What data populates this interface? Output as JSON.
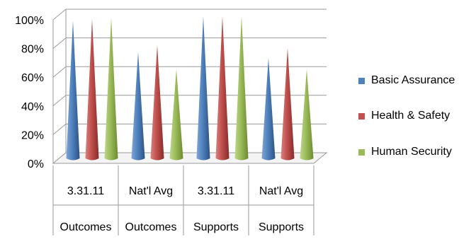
{
  "chart_data": {
    "type": "bar",
    "style": "3d-cone",
    "categories": [
      {
        "label": "3.31.11",
        "group": "Outcomes"
      },
      {
        "label": "Nat'l Avg",
        "group": "Outcomes"
      },
      {
        "label": "3.31.11",
        "group": "Supports"
      },
      {
        "label": "Nat'l Avg",
        "group": "Supports"
      }
    ],
    "series": [
      {
        "name": "Basic Assurance",
        "color": "#4F81BD",
        "values": [
          97,
          75,
          100,
          71
        ]
      },
      {
        "name": "Health & Safety",
        "color": "#C0504D",
        "values": [
          98,
          80,
          100,
          78
        ]
      },
      {
        "name": "Human Security",
        "color": "#9BBB59",
        "values": [
          99,
          63,
          100,
          63
        ]
      }
    ],
    "y_ticks": [
      "0%",
      "20%",
      "40%",
      "60%",
      "80%",
      "100%"
    ],
    "ylim": [
      0,
      100
    ],
    "grid": true,
    "legend_position": "right"
  }
}
